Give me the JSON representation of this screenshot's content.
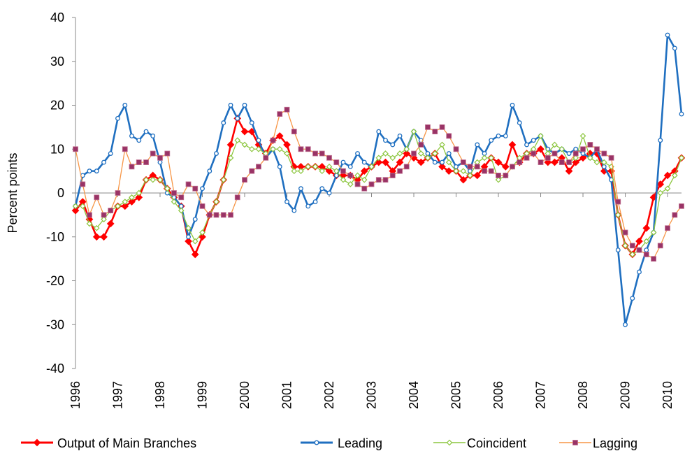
{
  "chart_data": {
    "type": "line",
    "y_label": "Percent points",
    "xlim": [
      1996,
      2010.33
    ],
    "xticks": [
      1996,
      1997,
      1998,
      1999,
      2000,
      2001,
      2002,
      2003,
      2004,
      2005,
      2006,
      2007,
      2008,
      2009,
      2010
    ],
    "ylim": [
      -40,
      40
    ],
    "yticks": [
      -40,
      -30,
      -20,
      -10,
      0,
      10,
      20,
      30,
      40
    ],
    "legend": "bottom",
    "x": [
      1996,
      1996.17,
      1996.33,
      1996.5,
      1996.67,
      1996.83,
      1997,
      1997.17,
      1997.33,
      1997.5,
      1997.67,
      1997.83,
      1998,
      1998.17,
      1998.33,
      1998.5,
      1998.67,
      1998.83,
      1999,
      1999.17,
      1999.33,
      1999.5,
      1999.67,
      1999.83,
      2000,
      2000.17,
      2000.33,
      2000.5,
      2000.67,
      2000.83,
      2001,
      2001.17,
      2001.33,
      2001.5,
      2001.67,
      2001.83,
      2002,
      2002.17,
      2002.33,
      2002.5,
      2002.67,
      2002.83,
      2003,
      2003.17,
      2003.33,
      2003.5,
      2003.67,
      2003.83,
      2004,
      2004.17,
      2004.33,
      2004.5,
      2004.67,
      2004.83,
      2005,
      2005.17,
      2005.33,
      2005.5,
      2005.67,
      2005.83,
      2006,
      2006.17,
      2006.33,
      2006.5,
      2006.67,
      2006.83,
      2007,
      2007.17,
      2007.33,
      2007.5,
      2007.67,
      2007.83,
      2008,
      2008.17,
      2008.33,
      2008.5,
      2008.67,
      2008.83,
      2009,
      2009.17,
      2009.33,
      2009.5,
      2009.67,
      2009.83,
      2010,
      2010.17,
      2010.33
    ],
    "series": [
      {
        "name": "Output of Main Branches",
        "color": "#ff0000",
        "marker": "diamond",
        "marker_color": "#ff0000",
        "values": [
          -4,
          -2,
          -6,
          -10,
          -10,
          -7,
          -3,
          -3,
          -2,
          -1,
          3,
          4,
          3,
          1,
          -1,
          -3,
          -11,
          -14,
          -10,
          -5,
          -2,
          3,
          11,
          17,
          14,
          14,
          11,
          9,
          12,
          13,
          11,
          6,
          6,
          6,
          6,
          6,
          5,
          4,
          4,
          4,
          3,
          5,
          6,
          7,
          7,
          5,
          7,
          9,
          8,
          7,
          8,
          9,
          6,
          5,
          5,
          3,
          4,
          4,
          6,
          8,
          7,
          6,
          11,
          7,
          9,
          9,
          10,
          7,
          7,
          8,
          5,
          7,
          8,
          9,
          9,
          5,
          5,
          -5,
          -12,
          -14,
          -11,
          -8,
          -1,
          2,
          4,
          5,
          8
        ]
      },
      {
        "name": "Leading",
        "color": "#1f6fc0",
        "marker": "circle",
        "marker_color": "#1f6fc0",
        "values": [
          -3,
          4,
          5,
          5,
          7,
          9,
          17,
          20,
          13,
          12,
          14,
          13,
          7,
          0,
          -1,
          -3,
          -10,
          -6,
          1,
          5,
          9,
          16,
          20,
          17,
          20,
          16,
          12,
          8,
          10,
          6,
          -2,
          -4,
          1,
          -3,
          -2,
          1,
          0,
          4,
          7,
          6,
          9,
          7,
          6,
          14,
          12,
          11,
          13,
          10,
          14,
          12,
          9,
          7,
          7,
          9,
          6,
          7,
          5,
          11,
          9,
          12,
          13,
          13,
          20,
          16,
          11,
          12,
          13,
          10,
          9,
          10,
          9,
          10,
          9,
          8,
          10,
          6,
          3,
          -13,
          -30,
          -24,
          -18,
          -13,
          -9,
          12,
          36,
          33,
          18
        ]
      },
      {
        "name": "Coincident",
        "color": "#8cc63f",
        "marker": "hollow-diamond",
        "marker_color": "#8cc63f",
        "values": [
          -3,
          -3,
          -7,
          -8,
          -6,
          -4,
          -3,
          -2,
          -1,
          0,
          3,
          3,
          3,
          1,
          -2,
          -4,
          -8,
          -11,
          -9,
          -5,
          -2,
          3,
          8,
          12,
          11,
          10,
          10,
          9,
          10,
          10,
          9,
          5,
          5,
          6,
          6,
          5,
          6,
          5,
          3,
          2,
          4,
          3,
          6,
          8,
          9,
          8,
          9,
          10,
          14,
          9,
          8,
          9,
          11,
          7,
          5,
          5,
          4,
          7,
          8,
          8,
          3,
          4,
          6,
          8,
          9,
          10,
          13,
          9,
          11,
          10,
          7,
          8,
          13,
          8,
          7,
          7,
          6,
          -5,
          -12,
          -14,
          -13,
          -11,
          -9,
          0,
          1,
          4,
          8
        ]
      },
      {
        "name": "Lagging",
        "color": "#f79646",
        "marker": "square",
        "marker_color": "#993366",
        "values": [
          10,
          2,
          -5,
          -1,
          -5,
          -4,
          0,
          10,
          6,
          7,
          7,
          9,
          8,
          9,
          0,
          -1,
          2,
          1,
          -3,
          -5,
          -5,
          -5,
          -5,
          -1,
          3,
          5,
          6,
          8,
          12,
          18,
          19,
          14,
          10,
          10,
          9,
          9,
          8,
          7,
          5,
          4,
          2,
          1,
          2,
          3,
          3,
          4,
          5,
          6,
          9,
          11,
          15,
          14,
          15,
          13,
          10,
          7,
          6,
          6,
          5,
          5,
          4,
          4,
          6,
          7,
          8,
          9,
          7,
          8,
          9,
          7,
          7,
          9,
          10,
          11,
          10,
          9,
          8,
          -2,
          -9,
          -12,
          -13,
          -14,
          -15,
          -12,
          -8,
          -5,
          -3
        ]
      }
    ]
  }
}
